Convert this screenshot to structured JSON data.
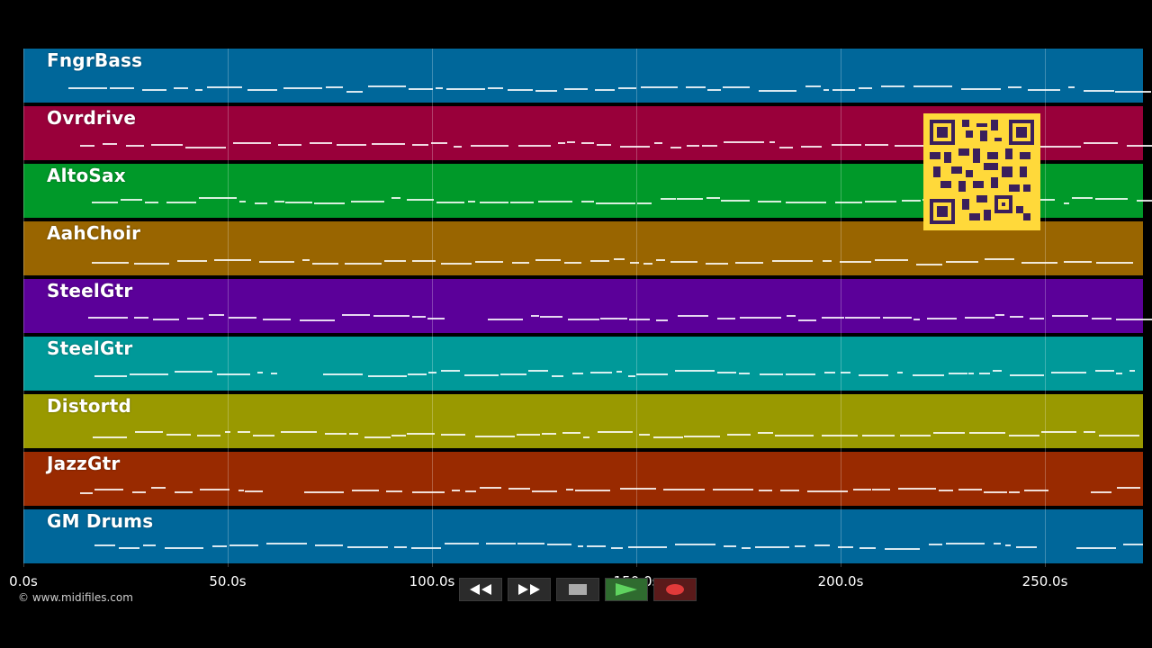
{
  "tracks": [
    {
      "name": "FngrBass",
      "color": "#00679a"
    },
    {
      "name": "Ovrdrive",
      "color": "#99003a"
    },
    {
      "name": "AltoSax",
      "color": "#009929"
    },
    {
      "name": "AahChoir",
      "color": "#996500"
    },
    {
      "name": "SteelGtr",
      "color": "#5b0099"
    },
    {
      "name": "SteelGtr",
      "color": "#009999"
    },
    {
      "name": "Distortd",
      "color": "#999900"
    },
    {
      "name": "JazzGtr",
      "color": "#992a00"
    },
    {
      "name": "GM Drums",
      "color": "#00679a"
    }
  ],
  "timeline": {
    "ticks": [
      "0.0s",
      "50.0s",
      "100.0s",
      "150.0s",
      "200.0s",
      "250.0s"
    ],
    "tick_seconds": [
      0,
      50,
      100,
      150,
      200,
      250
    ],
    "visible_end_seconds": 274
  },
  "copyright": "© www.midifiles.com",
  "transport": {
    "rewind": "rewind-icon",
    "fast_forward": "fast-forward-icon",
    "stop": "stop-icon",
    "play": "play-icon",
    "record": "record-icon"
  },
  "qr_code": "qr-code"
}
